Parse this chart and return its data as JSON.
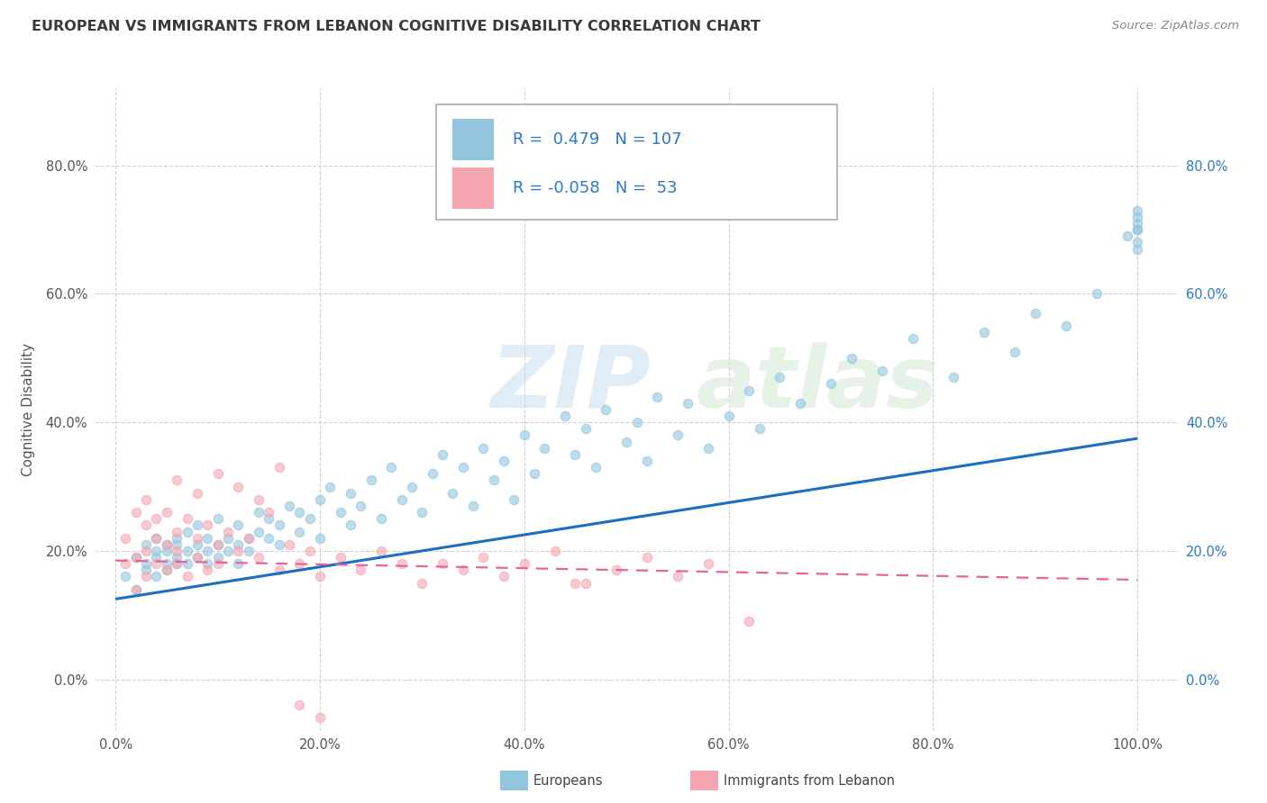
{
  "title": "EUROPEAN VS IMMIGRANTS FROM LEBANON COGNITIVE DISABILITY CORRELATION CHART",
  "source": "Source: ZipAtlas.com",
  "ylabel": "Cognitive Disability",
  "xlim": [
    -0.02,
    1.04
  ],
  "ylim": [
    -0.08,
    0.92
  ],
  "xtick_vals": [
    0.0,
    0.2,
    0.4,
    0.6,
    0.8,
    1.0
  ],
  "ytick_vals": [
    0.0,
    0.2,
    0.4,
    0.6,
    0.8
  ],
  "european_color": "#92C5DE",
  "lebanon_color": "#F4A5B0",
  "european_line_color": "#1B6EC2",
  "lebanon_line_color": "#E9629A",
  "R_european": 0.479,
  "N_european": 107,
  "R_lebanon": -0.058,
  "N_lebanon": 53,
  "legend_label_european": "Europeans",
  "legend_label_lebanon": "Immigrants from Lebanon",
  "watermark_zip": "ZIP",
  "watermark_atlas": "atlas",
  "background_color": "#FFFFFF",
  "plot_bg_color": "#FFFFFF",
  "grid_color": "#CCCCCC",
  "title_color": "#3A3A3A",
  "axis_label_color": "#555555",
  "right_axis_color": "#2979C8",
  "legend_text_color": "#2979C8",
  "european_line_x": [
    0.0,
    1.0
  ],
  "european_line_y": [
    0.125,
    0.375
  ],
  "lebanon_line_x": [
    0.0,
    1.0
  ],
  "lebanon_line_y": [
    0.185,
    0.155
  ],
  "eu_x": [
    0.01,
    0.02,
    0.02,
    0.03,
    0.03,
    0.03,
    0.04,
    0.04,
    0.04,
    0.04,
    0.05,
    0.05,
    0.05,
    0.05,
    0.06,
    0.06,
    0.06,
    0.06,
    0.07,
    0.07,
    0.07,
    0.08,
    0.08,
    0.08,
    0.09,
    0.09,
    0.09,
    0.1,
    0.1,
    0.1,
    0.11,
    0.11,
    0.12,
    0.12,
    0.12,
    0.13,
    0.13,
    0.14,
    0.14,
    0.15,
    0.15,
    0.16,
    0.16,
    0.17,
    0.18,
    0.18,
    0.19,
    0.2,
    0.2,
    0.21,
    0.22,
    0.23,
    0.23,
    0.24,
    0.25,
    0.26,
    0.27,
    0.28,
    0.29,
    0.3,
    0.31,
    0.32,
    0.33,
    0.34,
    0.35,
    0.36,
    0.37,
    0.38,
    0.39,
    0.4,
    0.41,
    0.42,
    0.44,
    0.45,
    0.46,
    0.47,
    0.48,
    0.5,
    0.51,
    0.52,
    0.53,
    0.55,
    0.56,
    0.58,
    0.6,
    0.62,
    0.63,
    0.65,
    0.67,
    0.7,
    0.72,
    0.75,
    0.78,
    0.82,
    0.85,
    0.88,
    0.9,
    0.93,
    0.96,
    0.99,
    1.0,
    1.0,
    1.0,
    1.0,
    1.0,
    1.0,
    1.0
  ],
  "eu_y": [
    0.16,
    0.19,
    0.14,
    0.21,
    0.17,
    0.18,
    0.2,
    0.16,
    0.19,
    0.22,
    0.18,
    0.21,
    0.17,
    0.2,
    0.19,
    0.22,
    0.18,
    0.21,
    0.2,
    0.23,
    0.18,
    0.21,
    0.19,
    0.24,
    0.2,
    0.22,
    0.18,
    0.21,
    0.19,
    0.25,
    0.2,
    0.22,
    0.21,
    0.18,
    0.24,
    0.22,
    0.2,
    0.23,
    0.26,
    0.22,
    0.25,
    0.21,
    0.24,
    0.27,
    0.23,
    0.26,
    0.25,
    0.28,
    0.22,
    0.3,
    0.26,
    0.24,
    0.29,
    0.27,
    0.31,
    0.25,
    0.33,
    0.28,
    0.3,
    0.26,
    0.32,
    0.35,
    0.29,
    0.33,
    0.27,
    0.36,
    0.31,
    0.34,
    0.28,
    0.38,
    0.32,
    0.36,
    0.41,
    0.35,
    0.39,
    0.33,
    0.42,
    0.37,
    0.4,
    0.34,
    0.44,
    0.38,
    0.43,
    0.36,
    0.41,
    0.45,
    0.39,
    0.47,
    0.43,
    0.46,
    0.5,
    0.48,
    0.53,
    0.47,
    0.54,
    0.51,
    0.57,
    0.55,
    0.6,
    0.69,
    0.71,
    0.7,
    0.73,
    0.68,
    0.72,
    0.67,
    0.7
  ],
  "lb_x": [
    0.01,
    0.01,
    0.02,
    0.02,
    0.02,
    0.03,
    0.03,
    0.03,
    0.03,
    0.04,
    0.04,
    0.04,
    0.05,
    0.05,
    0.05,
    0.06,
    0.06,
    0.06,
    0.07,
    0.07,
    0.08,
    0.08,
    0.09,
    0.09,
    0.1,
    0.1,
    0.11,
    0.12,
    0.13,
    0.14,
    0.15,
    0.16,
    0.17,
    0.18,
    0.19,
    0.2,
    0.22,
    0.24,
    0.26,
    0.28,
    0.3,
    0.32,
    0.34,
    0.36,
    0.38,
    0.4,
    0.43,
    0.46,
    0.49,
    0.52,
    0.55,
    0.58,
    0.62
  ],
  "lb_y": [
    0.22,
    0.18,
    0.26,
    0.19,
    0.14,
    0.24,
    0.2,
    0.28,
    0.16,
    0.22,
    0.18,
    0.25,
    0.21,
    0.17,
    0.26,
    0.2,
    0.23,
    0.18,
    0.25,
    0.16,
    0.22,
    0.19,
    0.24,
    0.17,
    0.21,
    0.18,
    0.23,
    0.2,
    0.22,
    0.19,
    0.26,
    0.17,
    0.21,
    0.18,
    0.2,
    0.16,
    0.19,
    0.17,
    0.2,
    0.18,
    0.15,
    0.18,
    0.17,
    0.19,
    0.16,
    0.18,
    0.2,
    0.15,
    0.17,
    0.19,
    0.16,
    0.18,
    0.09
  ],
  "lb_extra_x": [
    0.06,
    0.08,
    0.1,
    0.12,
    0.14,
    0.16,
    0.18,
    0.2,
    0.45
  ],
  "lb_extra_y": [
    0.31,
    0.29,
    0.32,
    0.3,
    0.28,
    0.33,
    -0.04,
    -0.06,
    0.15
  ]
}
